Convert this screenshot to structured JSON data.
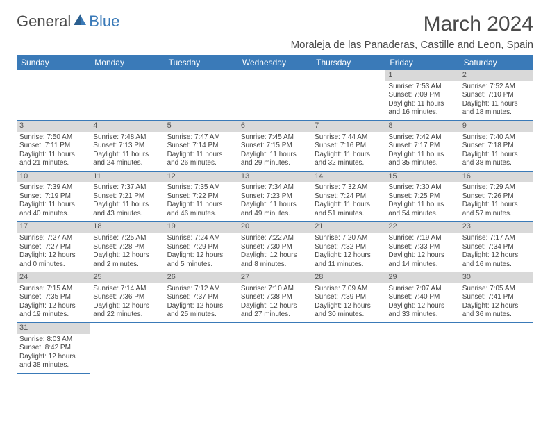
{
  "logo": {
    "general": "General",
    "blue": "Blue"
  },
  "title": "March 2024",
  "location": "Moraleja de las Panaderas, Castille and Leon, Spain",
  "colors": {
    "header_bg": "#3a7ab8",
    "header_text": "#ffffff",
    "daynum_bg": "#d9d9d9",
    "border": "#3a7ab8",
    "text": "#444444"
  },
  "weekdays": [
    "Sunday",
    "Monday",
    "Tuesday",
    "Wednesday",
    "Thursday",
    "Friday",
    "Saturday"
  ],
  "weeks": [
    [
      null,
      null,
      null,
      null,
      null,
      {
        "n": "1",
        "sr": "Sunrise: 7:53 AM",
        "ss": "Sunset: 7:09 PM",
        "d1": "Daylight: 11 hours",
        "d2": "and 16 minutes."
      },
      {
        "n": "2",
        "sr": "Sunrise: 7:52 AM",
        "ss": "Sunset: 7:10 PM",
        "d1": "Daylight: 11 hours",
        "d2": "and 18 minutes."
      }
    ],
    [
      {
        "n": "3",
        "sr": "Sunrise: 7:50 AM",
        "ss": "Sunset: 7:11 PM",
        "d1": "Daylight: 11 hours",
        "d2": "and 21 minutes."
      },
      {
        "n": "4",
        "sr": "Sunrise: 7:48 AM",
        "ss": "Sunset: 7:13 PM",
        "d1": "Daylight: 11 hours",
        "d2": "and 24 minutes."
      },
      {
        "n": "5",
        "sr": "Sunrise: 7:47 AM",
        "ss": "Sunset: 7:14 PM",
        "d1": "Daylight: 11 hours",
        "d2": "and 26 minutes."
      },
      {
        "n": "6",
        "sr": "Sunrise: 7:45 AM",
        "ss": "Sunset: 7:15 PM",
        "d1": "Daylight: 11 hours",
        "d2": "and 29 minutes."
      },
      {
        "n": "7",
        "sr": "Sunrise: 7:44 AM",
        "ss": "Sunset: 7:16 PM",
        "d1": "Daylight: 11 hours",
        "d2": "and 32 minutes."
      },
      {
        "n": "8",
        "sr": "Sunrise: 7:42 AM",
        "ss": "Sunset: 7:17 PM",
        "d1": "Daylight: 11 hours",
        "d2": "and 35 minutes."
      },
      {
        "n": "9",
        "sr": "Sunrise: 7:40 AM",
        "ss": "Sunset: 7:18 PM",
        "d1": "Daylight: 11 hours",
        "d2": "and 38 minutes."
      }
    ],
    [
      {
        "n": "10",
        "sr": "Sunrise: 7:39 AM",
        "ss": "Sunset: 7:19 PM",
        "d1": "Daylight: 11 hours",
        "d2": "and 40 minutes."
      },
      {
        "n": "11",
        "sr": "Sunrise: 7:37 AM",
        "ss": "Sunset: 7:21 PM",
        "d1": "Daylight: 11 hours",
        "d2": "and 43 minutes."
      },
      {
        "n": "12",
        "sr": "Sunrise: 7:35 AM",
        "ss": "Sunset: 7:22 PM",
        "d1": "Daylight: 11 hours",
        "d2": "and 46 minutes."
      },
      {
        "n": "13",
        "sr": "Sunrise: 7:34 AM",
        "ss": "Sunset: 7:23 PM",
        "d1": "Daylight: 11 hours",
        "d2": "and 49 minutes."
      },
      {
        "n": "14",
        "sr": "Sunrise: 7:32 AM",
        "ss": "Sunset: 7:24 PM",
        "d1": "Daylight: 11 hours",
        "d2": "and 51 minutes."
      },
      {
        "n": "15",
        "sr": "Sunrise: 7:30 AM",
        "ss": "Sunset: 7:25 PM",
        "d1": "Daylight: 11 hours",
        "d2": "and 54 minutes."
      },
      {
        "n": "16",
        "sr": "Sunrise: 7:29 AM",
        "ss": "Sunset: 7:26 PM",
        "d1": "Daylight: 11 hours",
        "d2": "and 57 minutes."
      }
    ],
    [
      {
        "n": "17",
        "sr": "Sunrise: 7:27 AM",
        "ss": "Sunset: 7:27 PM",
        "d1": "Daylight: 12 hours",
        "d2": "and 0 minutes."
      },
      {
        "n": "18",
        "sr": "Sunrise: 7:25 AM",
        "ss": "Sunset: 7:28 PM",
        "d1": "Daylight: 12 hours",
        "d2": "and 2 minutes."
      },
      {
        "n": "19",
        "sr": "Sunrise: 7:24 AM",
        "ss": "Sunset: 7:29 PM",
        "d1": "Daylight: 12 hours",
        "d2": "and 5 minutes."
      },
      {
        "n": "20",
        "sr": "Sunrise: 7:22 AM",
        "ss": "Sunset: 7:30 PM",
        "d1": "Daylight: 12 hours",
        "d2": "and 8 minutes."
      },
      {
        "n": "21",
        "sr": "Sunrise: 7:20 AM",
        "ss": "Sunset: 7:32 PM",
        "d1": "Daylight: 12 hours",
        "d2": "and 11 minutes."
      },
      {
        "n": "22",
        "sr": "Sunrise: 7:19 AM",
        "ss": "Sunset: 7:33 PM",
        "d1": "Daylight: 12 hours",
        "d2": "and 14 minutes."
      },
      {
        "n": "23",
        "sr": "Sunrise: 7:17 AM",
        "ss": "Sunset: 7:34 PM",
        "d1": "Daylight: 12 hours",
        "d2": "and 16 minutes."
      }
    ],
    [
      {
        "n": "24",
        "sr": "Sunrise: 7:15 AM",
        "ss": "Sunset: 7:35 PM",
        "d1": "Daylight: 12 hours",
        "d2": "and 19 minutes."
      },
      {
        "n": "25",
        "sr": "Sunrise: 7:14 AM",
        "ss": "Sunset: 7:36 PM",
        "d1": "Daylight: 12 hours",
        "d2": "and 22 minutes."
      },
      {
        "n": "26",
        "sr": "Sunrise: 7:12 AM",
        "ss": "Sunset: 7:37 PM",
        "d1": "Daylight: 12 hours",
        "d2": "and 25 minutes."
      },
      {
        "n": "27",
        "sr": "Sunrise: 7:10 AM",
        "ss": "Sunset: 7:38 PM",
        "d1": "Daylight: 12 hours",
        "d2": "and 27 minutes."
      },
      {
        "n": "28",
        "sr": "Sunrise: 7:09 AM",
        "ss": "Sunset: 7:39 PM",
        "d1": "Daylight: 12 hours",
        "d2": "and 30 minutes."
      },
      {
        "n": "29",
        "sr": "Sunrise: 7:07 AM",
        "ss": "Sunset: 7:40 PM",
        "d1": "Daylight: 12 hours",
        "d2": "and 33 minutes."
      },
      {
        "n": "30",
        "sr": "Sunrise: 7:05 AM",
        "ss": "Sunset: 7:41 PM",
        "d1": "Daylight: 12 hours",
        "d2": "and 36 minutes."
      }
    ],
    [
      {
        "n": "31",
        "sr": "Sunrise: 8:03 AM",
        "ss": "Sunset: 8:42 PM",
        "d1": "Daylight: 12 hours",
        "d2": "and 38 minutes."
      },
      null,
      null,
      null,
      null,
      null,
      null
    ]
  ]
}
